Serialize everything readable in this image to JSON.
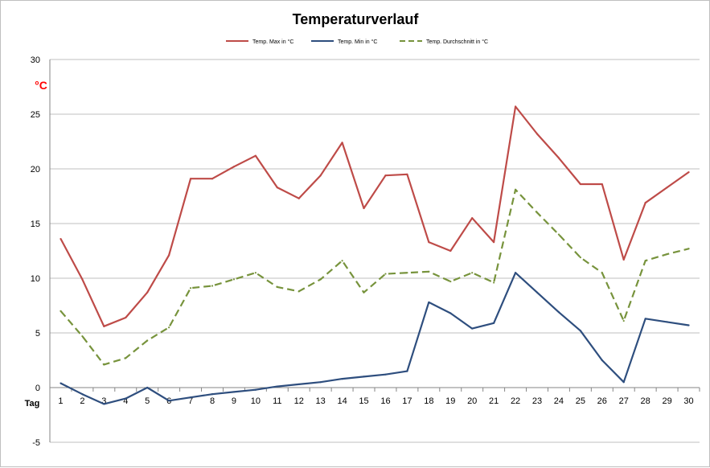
{
  "chart_data": {
    "type": "line",
    "title": "Temperaturverlauf",
    "unit_label": "°C",
    "unit_color": "#ff0000",
    "xlabel": "Tag",
    "ylabel": "",
    "ylim": [
      -5,
      30
    ],
    "yticks": [
      -5,
      0,
      5,
      10,
      15,
      20,
      25,
      30
    ],
    "grid": true,
    "legend_position": "top-center",
    "x": [
      1,
      2,
      3,
      4,
      5,
      6,
      7,
      8,
      9,
      10,
      11,
      12,
      13,
      14,
      15,
      16,
      17,
      18,
      19,
      20,
      21,
      22,
      23,
      24,
      25,
      26,
      27,
      28,
      29,
      30
    ],
    "series": [
      {
        "name": "Temp. Max in °C",
        "color": "#be4b48",
        "dashed": false,
        "values": [
          13.6,
          9.9,
          5.6,
          6.4,
          8.7,
          12.1,
          19.1,
          19.1,
          20.2,
          21.2,
          18.3,
          17.3,
          19.4,
          22.4,
          16.4,
          19.4,
          19.5,
          13.3,
          12.5,
          15.5,
          13.3,
          25.7,
          23.2,
          21.0,
          18.6,
          18.6,
          11.7,
          16.9,
          18.3,
          19.7
        ]
      },
      {
        "name": "Temp. Min in °C",
        "color": "#2e4e7e",
        "dashed": false,
        "values": [
          0.4,
          -0.6,
          -1.5,
          -1.0,
          0.0,
          -1.2,
          -0.9,
          -0.6,
          -0.4,
          -0.2,
          0.1,
          0.3,
          0.5,
          0.8,
          1.0,
          1.2,
          1.5,
          7.8,
          6.8,
          5.4,
          5.9,
          10.5,
          8.7,
          6.9,
          5.2,
          2.5,
          0.5,
          6.3,
          6.0,
          5.7
        ]
      },
      {
        "name": "Temp. Durchschnitt in °C",
        "color": "#77933c",
        "dashed": true,
        "values": [
          7.0,
          4.7,
          2.1,
          2.7,
          4.3,
          5.5,
          9.1,
          9.3,
          9.9,
          10.5,
          9.2,
          8.8,
          9.9,
          11.6,
          8.7,
          10.4,
          10.5,
          10.6,
          9.7,
          10.5,
          9.6,
          18.1,
          16.0,
          14.0,
          11.9,
          10.5,
          6.1,
          11.6,
          12.2,
          12.7
        ]
      }
    ]
  }
}
